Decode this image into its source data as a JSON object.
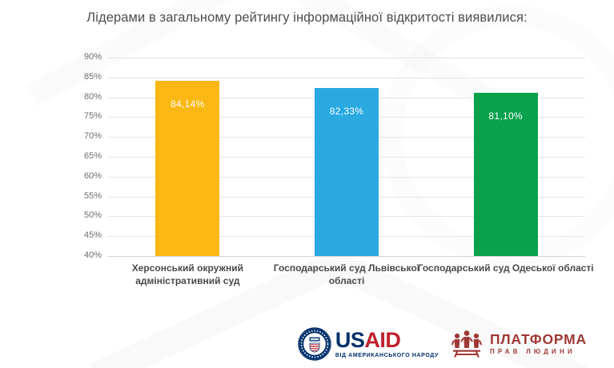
{
  "title": "Лідерами в загальному рейтингу інформаційної відкритості виявилися:",
  "chart_data": {
    "type": "bar",
    "title": "Лідерами в загальному рейтингу інформаційної відкритості виявилися:",
    "categories": [
      "Херсонський окружний адміністративний суд",
      "Господарський суд Львівської області",
      "Господарський суд Одеської області"
    ],
    "values": [
      84.14,
      82.33,
      81.1
    ],
    "value_labels": [
      "84,14%",
      "82,33%",
      "81,10%"
    ],
    "bar_colors": [
      "#fbb713",
      "#29a9e0",
      "#0aa14d"
    ],
    "xlabel": "",
    "ylabel": "",
    "ylim": [
      40,
      90
    ],
    "ytick_step": 5,
    "ytick_suffix": "%",
    "grid": true,
    "legend": "none"
  },
  "footer": {
    "usaid": {
      "brand_us": "US",
      "brand_aid": "AID",
      "tagline": "ВІД АМЕРИКАНСЬКОГО НАРОДУ"
    },
    "platform": {
      "name": "ПЛАТФОРМА",
      "subtitle": "ПРАВ ЛЮДИНИ"
    }
  },
  "colors": {
    "title_text": "#4d4d4d",
    "axis_text": "#6e6e6e",
    "category_text": "#4a4a4a",
    "gridline": "#e4e4e4",
    "usaid_navy": "#002f6c",
    "usaid_red": "#c0202e",
    "platform_red": "#9e3935"
  }
}
